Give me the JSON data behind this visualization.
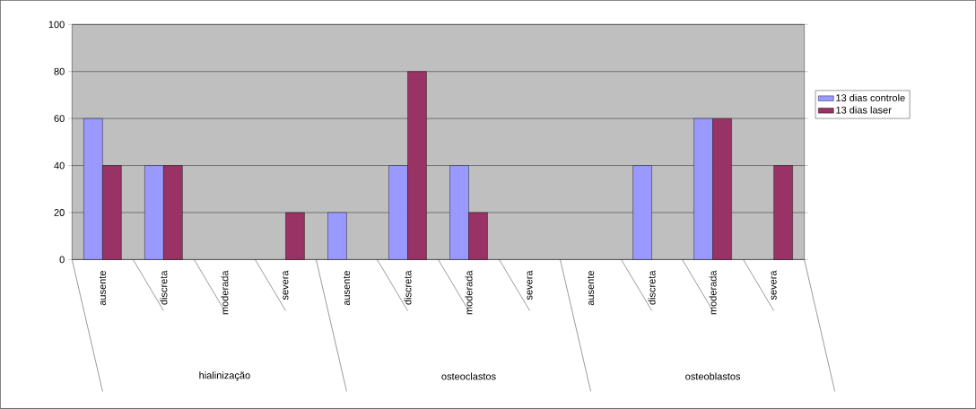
{
  "chart_data": {
    "type": "bar",
    "categories": [
      "ausente",
      "discreta",
      "moderada",
      "severa",
      "ausente",
      "discreta",
      "moderada",
      "severa",
      "ausente",
      "discreta",
      "moderada",
      "severa"
    ],
    "annotations": [
      "hialinização",
      "osteoclastos",
      "osteoblastos"
    ],
    "series": [
      {
        "name": "13 dias controle",
        "color": "#9999ff",
        "values": [
          60,
          40,
          0,
          0,
          20,
          40,
          40,
          0,
          0,
          40,
          60,
          0
        ]
      },
      {
        "name": "13 dias laser",
        "color": "#993366",
        "values": [
          40,
          40,
          0,
          20,
          0,
          80,
          20,
          0,
          0,
          0,
          60,
          40
        ]
      }
    ],
    "ylim": [
      0,
      100
    ],
    "yticks": [
      0,
      20,
      40,
      60,
      80,
      100
    ],
    "grid": "y",
    "legend": "right"
  }
}
